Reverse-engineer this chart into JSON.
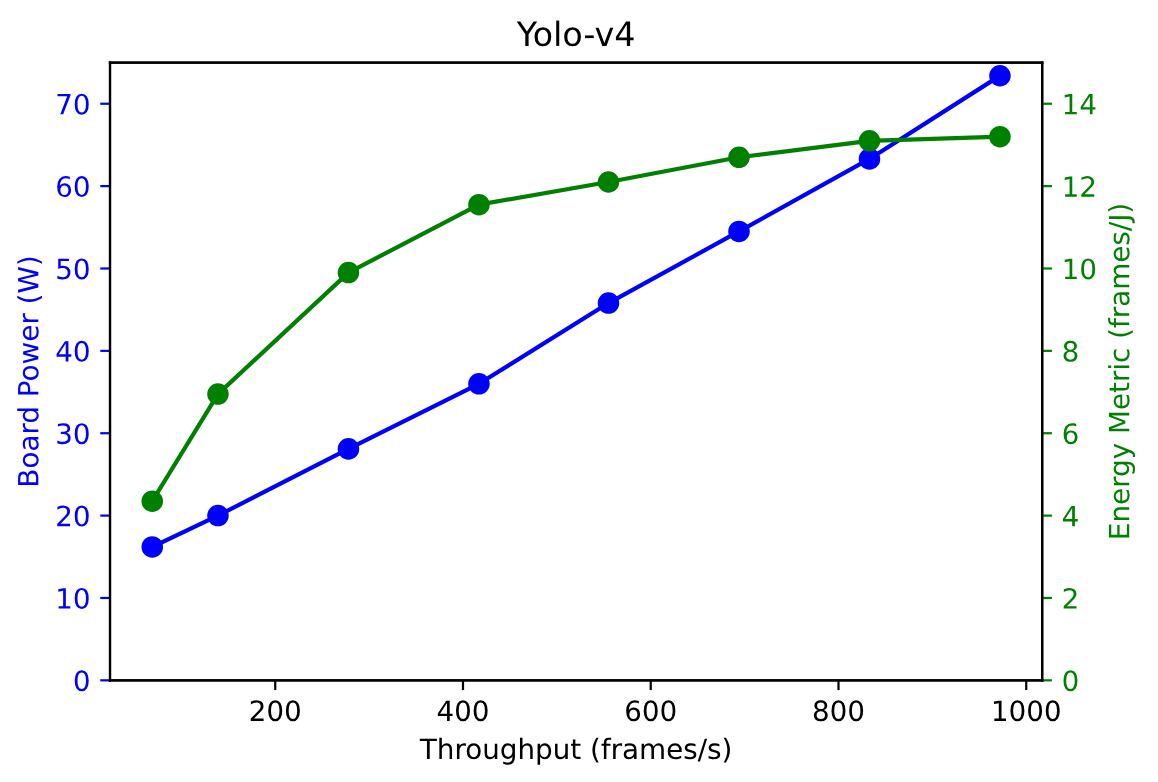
{
  "chart_data": {
    "type": "line",
    "title": "Yolo-v4",
    "xlabel": "Throughput (frames/s)",
    "ylabel": "Board Power (W)",
    "y2label": "Energy Metric (frames/J)",
    "x": [
      69,
      139,
      278,
      417,
      555,
      694,
      833,
      972
    ],
    "series": [
      {
        "color": "#0000ff",
        "values": [
          16.2,
          20,
          28.1,
          36,
          45.8,
          54.5,
          63.3,
          73.4
        ]
      },
      {
        "color": "#008000",
        "axis": "y2",
        "values": [
          4.35,
          6.95,
          9.9,
          11.55,
          12.1,
          12.7,
          13.1,
          13.2
        ]
      }
    ],
    "xlim": [
      24,
      1017
    ],
    "xticks": [
      200,
      400,
      600,
      800,
      1000
    ],
    "ylim": [
      0,
      75
    ],
    "yticks": [
      0,
      10,
      20,
      30,
      40,
      50,
      60,
      70
    ],
    "y2lim": [
      0,
      15
    ],
    "y2ticks": [
      0,
      2,
      4,
      6,
      8,
      10,
      12,
      14
    ],
    "marker": "circle",
    "line_style": "solid",
    "grid": false
  }
}
